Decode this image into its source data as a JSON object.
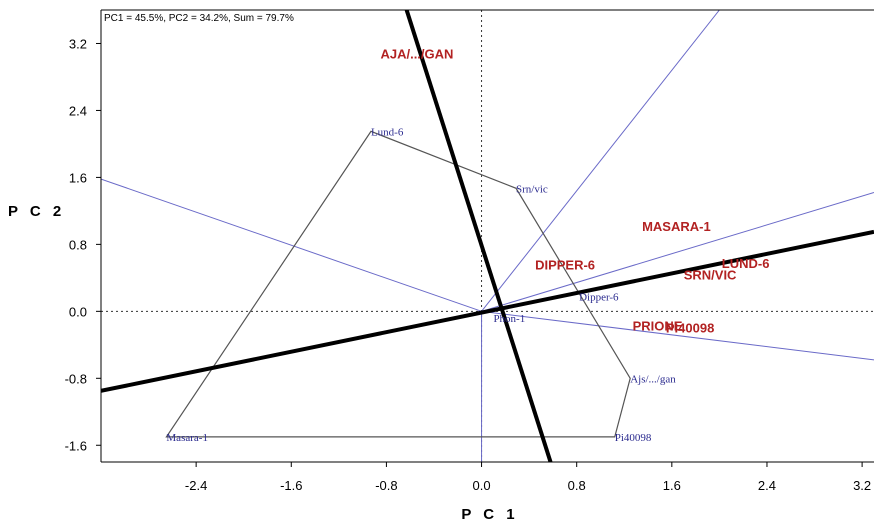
{
  "chart_data": {
    "type": "scatter",
    "subtitle": "PC1 = 45.5%, PC2 = 34.2%, Sum = 79.7%",
    "xlabel": "P C 1",
    "ylabel": "P C 2",
    "xlim": [
      -3.2,
      3.3
    ],
    "ylim": [
      -1.8,
      3.6
    ],
    "xticks": [
      -2.4,
      -1.6,
      -0.8,
      0.0,
      0.8,
      1.6,
      2.4,
      3.2
    ],
    "xtick_labels": [
      "-2.4",
      "-1.6",
      "-0.8",
      "0.0",
      "0.8",
      "1.6",
      "2.4",
      "3.2"
    ],
    "yticks": [
      3.2,
      2.4,
      1.6,
      0.8,
      0.0,
      -0.8,
      -1.6
    ],
    "ytick_labels": [
      "3.2",
      "2.4",
      "1.6",
      "0.8",
      "0.0",
      "-0.8",
      "-1.6"
    ],
    "reference_lines": "dotted lines at x = 0 and y = 0",
    "genotypes": [
      {
        "label": "Lund-6",
        "x": -0.93,
        "y": 2.15
      },
      {
        "label": "Srn/vic",
        "x": 0.29,
        "y": 1.47
      },
      {
        "label": "Dipper-6",
        "x": 0.82,
        "y": 0.18
      },
      {
        "label": "Phon-1",
        "x": 0.1,
        "y": -0.08
      },
      {
        "label": "Ajs/.../gan",
        "x": 1.25,
        "y": -0.8
      },
      {
        "label": "Pi40098",
        "x": 1.12,
        "y": -1.5
      },
      {
        "label": "Masara-1",
        "x": -2.65,
        "y": -1.5
      }
    ],
    "environments": [
      {
        "label": "AJA/.../GAN",
        "x": -0.85,
        "y": 3.02
      },
      {
        "label": "MASARA-1",
        "x": 1.35,
        "y": 0.96
      },
      {
        "label": "DIPPER-6",
        "x": 0.45,
        "y": 0.5
      },
      {
        "label": "LUND-6",
        "x": 2.02,
        "y": 0.52
      },
      {
        "label": "SRN/VIC",
        "x": 1.7,
        "y": 0.38
      },
      {
        "label": "PRIONE",
        "x": 1.27,
        "y": -0.23
      },
      {
        "label": "PI40098",
        "x": 1.55,
        "y": -0.25
      }
    ],
    "hull": [
      [
        -0.93,
        2.15
      ],
      [
        0.29,
        1.47
      ],
      [
        1.25,
        -0.8
      ],
      [
        1.12,
        -1.5
      ],
      [
        -2.65,
        -1.5
      ]
    ],
    "hull_rays": [
      {
        "from": [
          0,
          0
        ],
        "to": [
          -3.2,
          1.58
        ]
      },
      {
        "from": [
          0,
          0
        ],
        "to": [
          2.0,
          3.6
        ]
      },
      {
        "from": [
          0,
          0
        ],
        "to": [
          3.3,
          1.42
        ]
      },
      {
        "from": [
          0,
          0
        ],
        "to": [
          3.3,
          -0.58
        ]
      },
      {
        "from": [
          0,
          0
        ],
        "to": [
          0,
          -1.8
        ]
      }
    ],
    "thick_lines": [
      {
        "from": [
          -0.63,
          3.6
        ],
        "to": [
          0.58,
          -1.8
        ]
      },
      {
        "from": [
          -3.2,
          -0.95
        ],
        "to": [
          3.3,
          0.95
        ]
      }
    ],
    "colors": {
      "genotype": "#2b2b8f",
      "environment": "#b22222",
      "hull": "#555555",
      "rays": "#6a6ac8",
      "thick": "#000000"
    }
  }
}
